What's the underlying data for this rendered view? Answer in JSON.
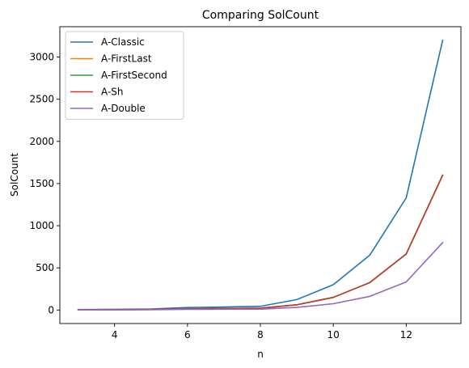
{
  "chart_data": {
    "type": "line",
    "title": "Comparing SolCount",
    "xlabel": "n",
    "ylabel": "SolCount",
    "xlim": [
      2.5,
      13.5
    ],
    "ylim": [
      -160,
      3360
    ],
    "xticks": [
      4,
      6,
      8,
      10,
      12
    ],
    "yticks": [
      0,
      500,
      1000,
      1500,
      2000,
      2500,
      3000
    ],
    "legend_position": "top-left",
    "grid": false,
    "x": [
      3,
      4,
      5,
      6,
      7,
      8,
      9,
      10,
      11,
      12,
      13
    ],
    "series": [
      {
        "name": "A-Classic",
        "color": "#1f77b4",
        "values": [
          6,
          8,
          12,
          30,
          36,
          44,
          124,
          300,
          650,
          1330,
          3200
        ]
      },
      {
        "name": "A-FirstLast",
        "color": "#ff7f0e",
        "values": [
          3,
          4,
          6,
          15,
          18,
          22,
          62,
          150,
          325,
          665,
          1600
        ]
      },
      {
        "name": "A-FirstSecond",
        "color": "#2ca02c",
        "values": [
          3,
          4,
          6,
          15,
          18,
          22,
          62,
          150,
          325,
          665,
          1600
        ]
      },
      {
        "name": "A-Sh",
        "color": "#c0392b",
        "values": [
          3,
          4,
          6,
          15,
          18,
          22,
          62,
          150,
          325,
          665,
          1600
        ]
      },
      {
        "name": "A-Double",
        "color": "#9467bd",
        "values": [
          2,
          2,
          3,
          8,
          9,
          11,
          31,
          75,
          162,
          333,
          800
        ]
      }
    ]
  }
}
